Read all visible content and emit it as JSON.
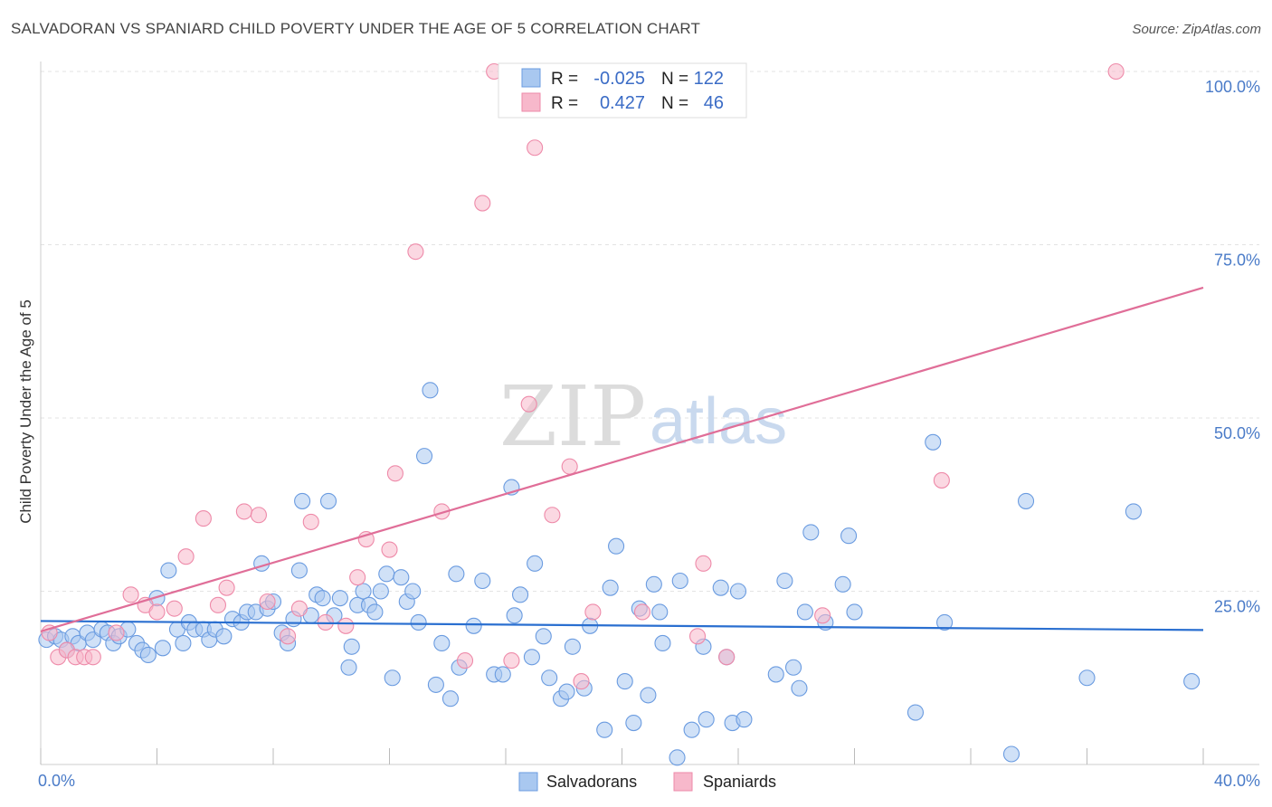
{
  "title": "SALVADORAN VS SPANIARD CHILD POVERTY UNDER THE AGE OF 5 CORRELATION CHART",
  "source": "Source: ZipAtlas.com",
  "watermark": {
    "zip": "ZIP",
    "atlas": "atlas"
  },
  "legend": {
    "r_label": "R =",
    "n_label": "N =",
    "rows": [
      {
        "r": "-0.025",
        "n": "122",
        "color": "#a9c8f0"
      },
      {
        "r": "0.427",
        "n": "46",
        "color": "#f7b8cb"
      }
    ]
  },
  "chart_data": {
    "type": "scatter",
    "ylabel": "Child Poverty Under the Age of 5",
    "xlim": [
      0,
      40
    ],
    "ylim": [
      0,
      100
    ],
    "x_tick_labels": [
      "0.0%",
      "40.0%"
    ],
    "y_tick_labels": [
      "25.0%",
      "50.0%",
      "75.0%",
      "100.0%"
    ],
    "y_ticks": [
      25,
      50,
      75,
      100
    ],
    "series": [
      {
        "name": "Salvadorans",
        "color": "#6a9be0",
        "fill": "#a9c8f0",
        "trend": {
          "x": [
            0,
            40
          ],
          "y": [
            20.7,
            19.4
          ],
          "color": "#2a6fd0"
        },
        "points": [
          [
            0.2,
            18
          ],
          [
            0.5,
            18.5
          ],
          [
            0.7,
            18
          ],
          [
            0.9,
            16.5
          ],
          [
            1.1,
            18.5
          ],
          [
            1.3,
            17.5
          ],
          [
            1.6,
            19
          ],
          [
            1.8,
            18
          ],
          [
            2.1,
            19.5
          ],
          [
            2.3,
            19
          ],
          [
            2.5,
            17.5
          ],
          [
            2.7,
            18.5
          ],
          [
            3.0,
            19.5
          ],
          [
            3.3,
            17.5
          ],
          [
            3.5,
            16.5
          ],
          [
            3.7,
            15.8
          ],
          [
            4.0,
            24
          ],
          [
            4.2,
            16.8
          ],
          [
            4.4,
            28
          ],
          [
            4.7,
            19.5
          ],
          [
            4.9,
            17.5
          ],
          [
            5.1,
            20.5
          ],
          [
            5.3,
            19.5
          ],
          [
            5.6,
            19.5
          ],
          [
            5.8,
            18
          ],
          [
            6.0,
            19.5
          ],
          [
            6.3,
            18.5
          ],
          [
            6.6,
            21
          ],
          [
            6.9,
            20.5
          ],
          [
            7.1,
            22
          ],
          [
            7.4,
            22
          ],
          [
            7.6,
            29
          ],
          [
            7.8,
            22.5
          ],
          [
            8.0,
            23.5
          ],
          [
            8.3,
            19
          ],
          [
            8.5,
            17.5
          ],
          [
            8.7,
            21
          ],
          [
            8.9,
            28
          ],
          [
            9.0,
            38
          ],
          [
            9.3,
            21.5
          ],
          [
            9.5,
            24.5
          ],
          [
            9.7,
            24
          ],
          [
            9.9,
            38
          ],
          [
            10.1,
            21.5
          ],
          [
            10.3,
            24
          ],
          [
            10.6,
            14
          ],
          [
            10.7,
            17
          ],
          [
            10.9,
            23
          ],
          [
            11.1,
            25
          ],
          [
            11.3,
            23
          ],
          [
            11.5,
            22
          ],
          [
            11.7,
            25
          ],
          [
            11.9,
            27.5
          ],
          [
            12.1,
            12.5
          ],
          [
            12.4,
            27
          ],
          [
            12.6,
            23.5
          ],
          [
            12.8,
            25
          ],
          [
            13.0,
            20.5
          ],
          [
            13.2,
            44.5
          ],
          [
            13.4,
            54
          ],
          [
            13.6,
            11.5
          ],
          [
            13.8,
            17.5
          ],
          [
            14.1,
            9.5
          ],
          [
            14.3,
            27.5
          ],
          [
            14.4,
            14
          ],
          [
            14.9,
            20
          ],
          [
            15.2,
            26.5
          ],
          [
            15.6,
            13
          ],
          [
            15.9,
            13
          ],
          [
            16.2,
            40
          ],
          [
            16.3,
            21.5
          ],
          [
            16.5,
            24.5
          ],
          [
            16.9,
            15.5
          ],
          [
            17.0,
            29
          ],
          [
            17.3,
            18.5
          ],
          [
            17.5,
            12.5
          ],
          [
            17.9,
            9.5
          ],
          [
            18.1,
            10.5
          ],
          [
            18.3,
            17
          ],
          [
            18.7,
            11
          ],
          [
            18.9,
            20
          ],
          [
            19.4,
            5
          ],
          [
            19.6,
            25.5
          ],
          [
            19.8,
            31.5
          ],
          [
            20.1,
            12
          ],
          [
            20.4,
            6
          ],
          [
            20.6,
            22.5
          ],
          [
            20.9,
            10
          ],
          [
            21.1,
            26
          ],
          [
            21.3,
            22
          ],
          [
            21.4,
            17.5
          ],
          [
            21.9,
            1
          ],
          [
            22.0,
            26.5
          ],
          [
            22.4,
            5
          ],
          [
            22.8,
            17
          ],
          [
            22.9,
            6.5
          ],
          [
            23.4,
            25.5
          ],
          [
            23.6,
            15.5
          ],
          [
            23.8,
            6
          ],
          [
            24.0,
            25
          ],
          [
            24.2,
            6.5
          ],
          [
            25.3,
            13
          ],
          [
            25.6,
            26.5
          ],
          [
            25.9,
            14
          ],
          [
            26.1,
            11
          ],
          [
            26.3,
            22
          ],
          [
            26.5,
            33.5
          ],
          [
            27.0,
            20.5
          ],
          [
            27.6,
            26
          ],
          [
            27.8,
            33
          ],
          [
            28.0,
            22
          ],
          [
            30.1,
            7.5
          ],
          [
            30.7,
            46.5
          ],
          [
            31.1,
            20.5
          ],
          [
            33.4,
            1.5
          ],
          [
            33.9,
            38
          ],
          [
            36.0,
            12.5
          ],
          [
            37.6,
            36.5
          ],
          [
            39.6,
            12
          ]
        ]
      },
      {
        "name": "Spaniards",
        "color": "#ee8aa9",
        "fill": "#f7b8cb",
        "trend": {
          "x": [
            0,
            40
          ],
          "y": [
            19.2,
            68.8
          ],
          "color": "#e06e98"
        },
        "points": [
          [
            0.3,
            19
          ],
          [
            0.6,
            15.5
          ],
          [
            0.9,
            16.5
          ],
          [
            1.2,
            15.5
          ],
          [
            1.5,
            15.5
          ],
          [
            1.8,
            15.5
          ],
          [
            2.6,
            19
          ],
          [
            3.1,
            24.5
          ],
          [
            3.6,
            23
          ],
          [
            4.0,
            22
          ],
          [
            4.6,
            22.5
          ],
          [
            5.0,
            30
          ],
          [
            5.6,
            35.5
          ],
          [
            6.1,
            23
          ],
          [
            6.4,
            25.5
          ],
          [
            7.0,
            36.5
          ],
          [
            7.5,
            36
          ],
          [
            7.8,
            23.5
          ],
          [
            8.5,
            18.5
          ],
          [
            8.9,
            22.5
          ],
          [
            9.3,
            35
          ],
          [
            9.8,
            20.5
          ],
          [
            10.5,
            20
          ],
          [
            10.9,
            27
          ],
          [
            11.2,
            32.5
          ],
          [
            12.0,
            31
          ],
          [
            12.2,
            42
          ],
          [
            12.9,
            74
          ],
          [
            13.8,
            36.5
          ],
          [
            14.6,
            15
          ],
          [
            15.2,
            81
          ],
          [
            15.6,
            100
          ],
          [
            16.2,
            15
          ],
          [
            16.8,
            52
          ],
          [
            17.0,
            89
          ],
          [
            17.6,
            36
          ],
          [
            18.2,
            43
          ],
          [
            18.6,
            12
          ],
          [
            19.0,
            22
          ],
          [
            20.7,
            22
          ],
          [
            22.6,
            18.5
          ],
          [
            22.8,
            29
          ],
          [
            23.6,
            15.5
          ],
          [
            26.9,
            21.5
          ],
          [
            31.0,
            41
          ],
          [
            37.0,
            100
          ]
        ]
      }
    ]
  },
  "bottom_legend": [
    "Salvadorans",
    "Spaniards"
  ]
}
